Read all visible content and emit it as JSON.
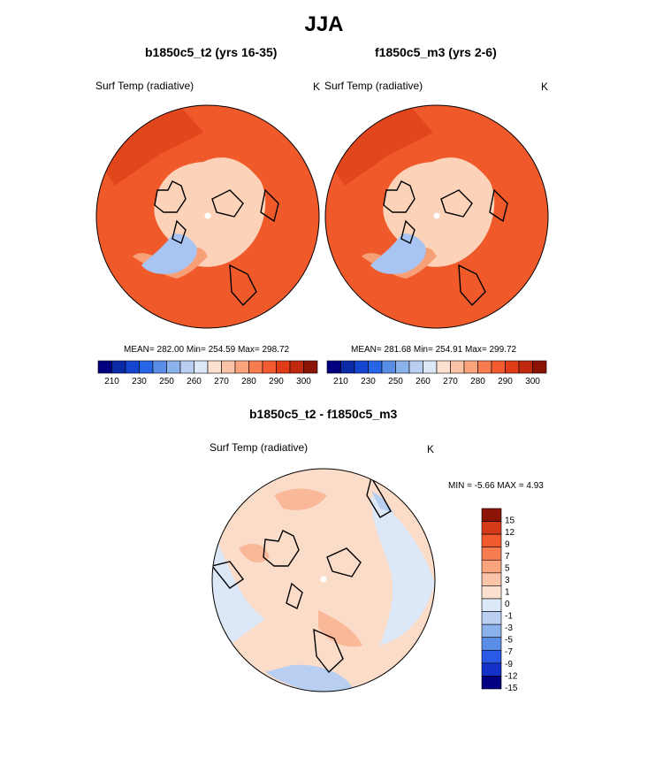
{
  "title": "JJA",
  "colors": {
    "abs_scale": [
      "#000080",
      "#0a2aa8",
      "#1446d2",
      "#2864e6",
      "#5a8ee6",
      "#8cb2ec",
      "#b8cff2",
      "#dce8f8",
      "#fce0d0",
      "#fbc4a8",
      "#f9a47c",
      "#f77c50",
      "#f25a30",
      "#e03c18",
      "#c02810",
      "#8c1406"
    ],
    "diff_scale": [
      "#000080",
      "#1432c8",
      "#2a5ae6",
      "#5a8ee6",
      "#8cb2ec",
      "#b8cff2",
      "#dce8f8",
      "#fce0d0",
      "#fbc4a8",
      "#f9a47c",
      "#f77c50",
      "#f25a30",
      "#d43a18",
      "#8c1406"
    ],
    "ocean_warm": "#f05a2a",
    "ocean_warm_dark": "#e2461c",
    "arctic_pale": "#fcd2b8",
    "mid_salmon": "#f7a078",
    "ice_blue": "#a8c4f2",
    "diff_pale_red": "#fbdcc8",
    "diff_pale_blue": "#dce8f8",
    "diff_blue": "#b8cff2",
    "diff_red": "#f9b898"
  },
  "panels": [
    {
      "id": "left",
      "title": "b1850c5_t2 (yrs 16-35)",
      "variable_label": "Surf Temp (radiative)",
      "units": "K",
      "stats_text": "MEAN= 282.00  Min= 254.59  Max= 298.72"
    },
    {
      "id": "right",
      "title": "f1850c5_m3 (yrs 2-6)",
      "variable_label": "Surf Temp (radiative)",
      "units": "K",
      "stats_text": "MEAN= 281.68  Min= 254.91  Max= 299.72"
    }
  ],
  "diff_panel": {
    "title": "b1850c5_t2 - f1850c5_m3",
    "variable_label": "Surf Temp (radiative)",
    "units": "K",
    "minmax_text": "MIN =  -5.66 MAX =   4.93"
  },
  "chart_data": [
    {
      "type": "heatmap",
      "projection": "north polar stereographic",
      "title": "b1850c5_t2 (yrs 16-35)",
      "variable": "Surf Temp (radiative)",
      "units": "K",
      "mean": 282.0,
      "min": 254.59,
      "max": 298.72,
      "colorbar_ticks": [
        210,
        230,
        250,
        260,
        270,
        280,
        290,
        300
      ]
    },
    {
      "type": "heatmap",
      "projection": "north polar stereographic",
      "title": "f1850c5_m3 (yrs 2-6)",
      "variable": "Surf Temp (radiative)",
      "units": "K",
      "mean": 281.68,
      "min": 254.91,
      "max": 299.72,
      "colorbar_ticks": [
        210,
        230,
        250,
        260,
        270,
        280,
        290,
        300
      ]
    },
    {
      "type": "heatmap",
      "projection": "north polar stereographic",
      "title": "b1850c5_t2 - f1850c5_m3",
      "variable": "Surf Temp (radiative)",
      "units": "K",
      "min": -5.66,
      "max": 4.93,
      "colorbar_ticks": [
        15,
        12,
        9,
        7,
        5,
        3,
        1,
        0,
        -1,
        -3,
        -5,
        -7,
        -9,
        -12,
        -15
      ]
    }
  ]
}
